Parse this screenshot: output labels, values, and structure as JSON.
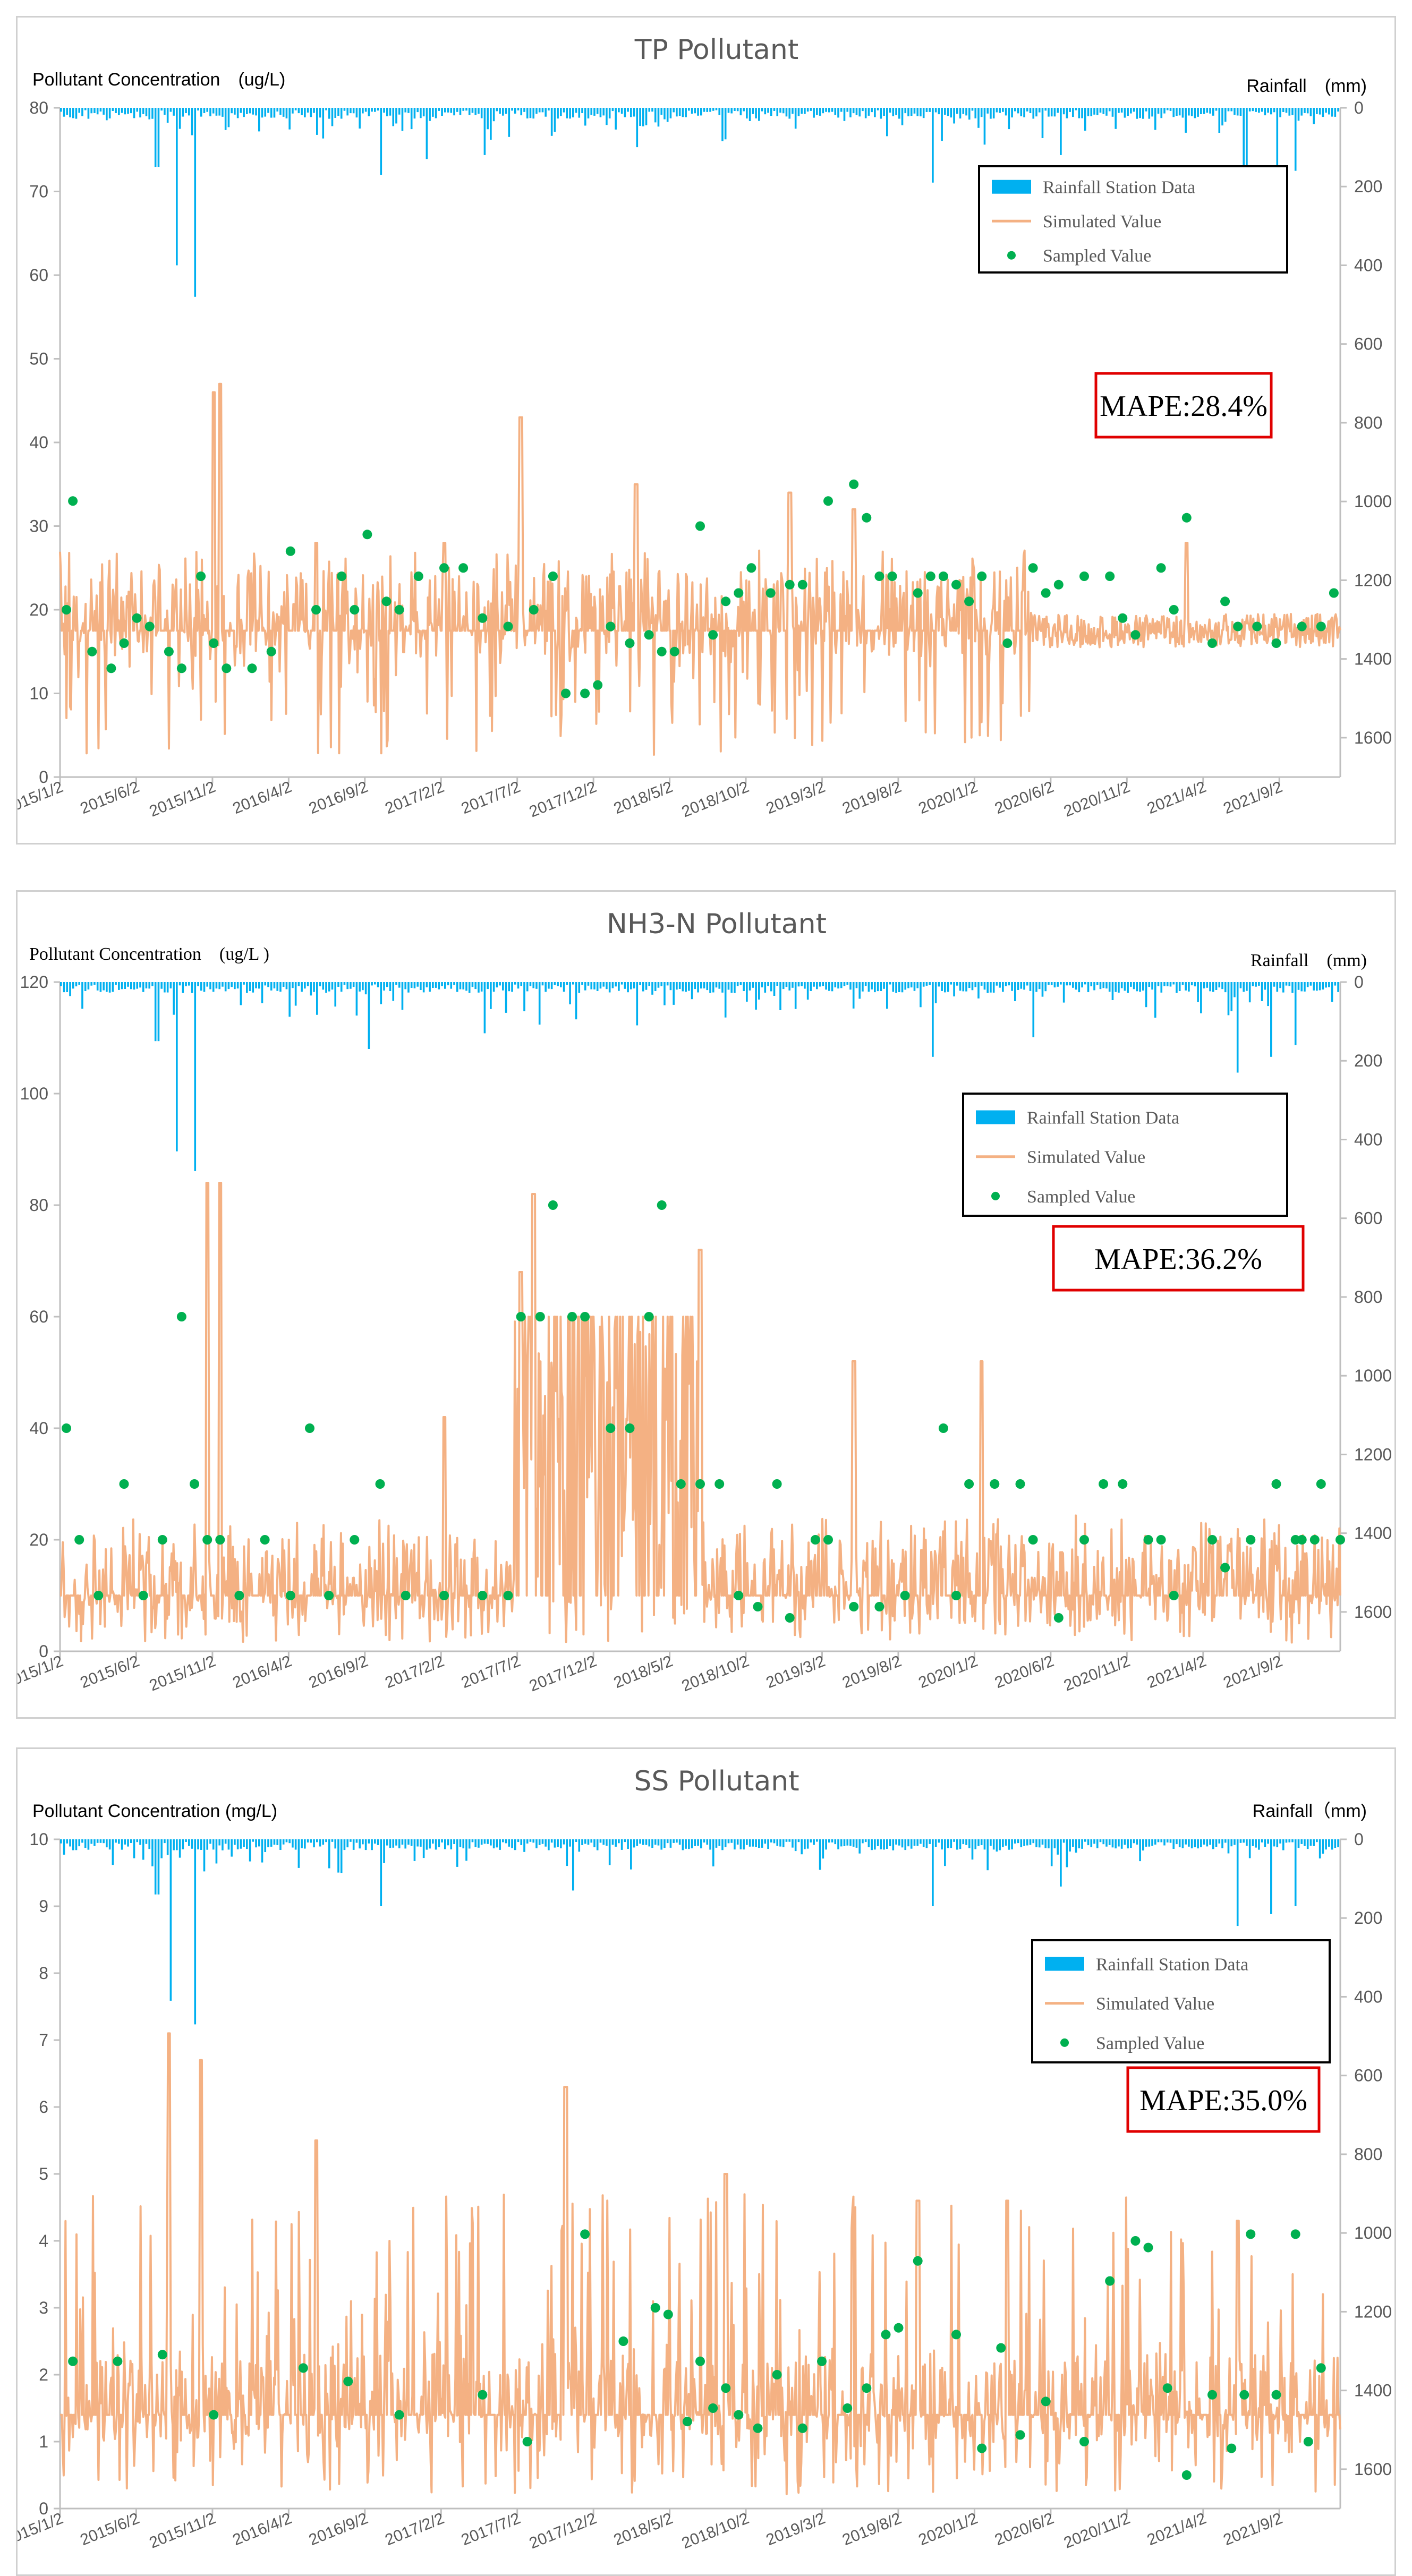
{
  "chart_data": [
    {
      "type": "line",
      "title": "TP Pollutant",
      "ylabel": "Pollutant Concentration　(ug/L)",
      "y2label": "Rainfall　(mm)",
      "ylim": [
        0,
        80
      ],
      "yticks": [
        0,
        10,
        20,
        30,
        40,
        50,
        60,
        70,
        80
      ],
      "y2lim": [
        0,
        1700
      ],
      "y2reversed": true,
      "y2ticks": [
        0,
        200,
        400,
        600,
        800,
        1000,
        1200,
        1400,
        1600
      ],
      "xticks": [
        "2015/1/2",
        "2015/6/2",
        "2015/11/2",
        "2016/4/2",
        "2016/9/2",
        "2017/2/2",
        "2017/7/2",
        "2017/12/2",
        "2018/5/2",
        "2018/10/2",
        "2019/3/2",
        "2019/8/2",
        "2020/1/2",
        "2020/6/2",
        "2020/11/2",
        "2021/4/2",
        "2021/9/2"
      ],
      "legend": [
        "Rainfall Station Data",
        "Simulated Value",
        "Sampled Value"
      ],
      "legend_position": "right",
      "annotation": "MAPE:28.4%",
      "base": 17.5,
      "peaks": [
        [
          0.12,
          46
        ],
        [
          0.125,
          47
        ],
        [
          0.36,
          43
        ],
        [
          0.45,
          35
        ],
        [
          0.57,
          34
        ],
        [
          0.62,
          32
        ],
        [
          0.88,
          28
        ],
        [
          0.2,
          28
        ],
        [
          0.3,
          28
        ]
      ],
      "rain_spikes": [
        [
          0.09,
          400
        ],
        [
          0.105,
          480
        ],
        [
          0.075,
          150
        ],
        [
          0.25,
          170
        ],
        [
          0.285,
          130
        ],
        [
          0.33,
          120
        ],
        [
          0.45,
          100
        ],
        [
          0.52,
          80
        ],
        [
          0.68,
          190
        ],
        [
          0.78,
          120
        ],
        [
          0.925,
          220
        ],
        [
          0.95,
          190
        ],
        [
          0.965,
          160
        ]
      ],
      "series": [
        {
          "name": "Sampled Value",
          "x": [
            0.005,
            0.01,
            0.025,
            0.04,
            0.05,
            0.06,
            0.07,
            0.085,
            0.095,
            0.11,
            0.12,
            0.13,
            0.15,
            0.165,
            0.18,
            0.2,
            0.22,
            0.23,
            0.24,
            0.255,
            0.265,
            0.28,
            0.3,
            0.315,
            0.33,
            0.35,
            0.37,
            0.385,
            0.395,
            0.41,
            0.42,
            0.43,
            0.445,
            0.46,
            0.47,
            0.48,
            0.5,
            0.51,
            0.52,
            0.53,
            0.54,
            0.555,
            0.57,
            0.58,
            0.6,
            0.62,
            0.63,
            0.64,
            0.65,
            0.67,
            0.68,
            0.69,
            0.7,
            0.71,
            0.72,
            0.74,
            0.76,
            0.77,
            0.78,
            0.8,
            0.82,
            0.83,
            0.84,
            0.86,
            0.87,
            0.88,
            0.9,
            0.91,
            0.92,
            0.935,
            0.95,
            0.97,
            0.985,
            0.995
          ],
          "y": [
            20,
            33,
            15,
            13,
            16,
            19,
            18,
            15,
            13,
            24,
            16,
            13,
            13,
            15,
            27,
            20,
            24,
            20,
            29,
            21,
            20,
            24,
            25,
            25,
            19,
            18,
            20,
            24,
            10,
            10,
            11,
            18,
            16,
            17,
            15,
            15,
            30,
            17,
            21,
            22,
            25,
            22,
            23,
            23,
            33,
            35,
            31,
            24,
            24,
            22,
            24,
            24,
            23,
            21,
            24,
            16,
            25,
            22,
            23,
            24,
            24,
            19,
            17,
            25,
            20,
            31,
            16,
            21,
            18,
            18,
            16,
            18,
            18,
            22
          ]
        }
      ]
    },
    {
      "type": "line",
      "title": "NH3-N Pollutant",
      "ylabel": "Pollutant Concentration　(ug/L )",
      "y2label": "Rainfall　(mm)",
      "ylim": [
        0,
        120
      ],
      "yticks": [
        0,
        20,
        40,
        60,
        80,
        100,
        120
      ],
      "y2lim": [
        0,
        1700
      ],
      "y2reversed": true,
      "y2ticks": [
        0,
        200,
        400,
        600,
        800,
        1000,
        1200,
        1400,
        1600
      ],
      "xticks": [
        "2015/1/2",
        "2015/6/2",
        "2015/11/2",
        "2016/4/2",
        "2016/9/2",
        "2017/2/2",
        "2017/7/2",
        "2017/12/2",
        "2018/5/2",
        "2018/10/2",
        "2019/3/2",
        "2019/8/2",
        "2020/1/2",
        "2020/6/2",
        "2020/11/2",
        "2021/4/2",
        "2021/9/2"
      ],
      "legend": [
        "Rainfall Station Data",
        "Simulated Value",
        "Sampled Value"
      ],
      "legend_position": "right",
      "annotation": "MAPE:36.2%",
      "base": 10,
      "peaks": [
        [
          0.115,
          84
        ],
        [
          0.125,
          84
        ],
        [
          0.3,
          42
        ],
        [
          0.36,
          68
        ],
        [
          0.37,
          82
        ],
        [
          0.5,
          72
        ],
        [
          0.62,
          52
        ],
        [
          0.72,
          52
        ]
      ],
      "rain_spikes": [
        [
          0.09,
          430
        ],
        [
          0.105,
          480
        ],
        [
          0.075,
          150
        ],
        [
          0.24,
          170
        ],
        [
          0.33,
          130
        ],
        [
          0.45,
          110
        ],
        [
          0.52,
          90
        ],
        [
          0.68,
          190
        ],
        [
          0.76,
          140
        ],
        [
          0.92,
          230
        ],
        [
          0.945,
          190
        ],
        [
          0.965,
          160
        ]
      ],
      "series": [
        {
          "name": "Sampled Value",
          "x": [
            0.005,
            0.015,
            0.03,
            0.05,
            0.065,
            0.08,
            0.095,
            0.105,
            0.115,
            0.125,
            0.14,
            0.16,
            0.18,
            0.195,
            0.21,
            0.23,
            0.25,
            0.27,
            0.3,
            0.33,
            0.35,
            0.36,
            0.375,
            0.385,
            0.4,
            0.41,
            0.43,
            0.445,
            0.46,
            0.47,
            0.485,
            0.5,
            0.515,
            0.53,
            0.545,
            0.56,
            0.57,
            0.59,
            0.6,
            0.62,
            0.64,
            0.66,
            0.69,
            0.7,
            0.71,
            0.73,
            0.75,
            0.76,
            0.78,
            0.8,
            0.815,
            0.83,
            0.85,
            0.86,
            0.87,
            0.9,
            0.91,
            0.93,
            0.95,
            0.965,
            0.97,
            0.98,
            0.985,
            1.0
          ],
          "y": [
            40,
            20,
            10,
            30,
            10,
            20,
            60,
            30,
            20,
            20,
            10,
            20,
            10,
            40,
            10,
            20,
            30,
            10,
            10,
            10,
            10,
            60,
            60,
            80,
            60,
            60,
            40,
            40,
            60,
            80,
            30,
            30,
            30,
            10,
            8,
            30,
            6,
            20,
            20,
            8,
            8,
            10,
            40,
            10,
            30,
            30,
            30,
            20,
            6,
            20,
            30,
            30,
            20,
            20,
            10,
            20,
            15,
            20,
            30,
            20,
            20,
            20,
            30,
            20
          ]
        }
      ]
    },
    {
      "type": "line",
      "title": "SS Pollutant",
      "ylabel": "Pollutant Concentration (mg/L)",
      "y2label": "Rainfall（mm)",
      "ylim": [
        0,
        10
      ],
      "yticks": [
        0,
        1,
        2,
        3,
        4,
        5,
        6,
        7,
        8,
        9,
        10
      ],
      "y2lim": [
        0,
        1700
      ],
      "y2reversed": true,
      "y2ticks": [
        0,
        200,
        400,
        600,
        800,
        1000,
        1200,
        1400,
        1600
      ],
      "xticks": [
        "2015/1/2",
        "2015/6/2",
        "2015/11/2",
        "2016/4/2",
        "2016/9/2",
        "2017/2/2",
        "2017/7/2",
        "2017/12/2",
        "2018/5/2",
        "2018/10/2",
        "2019/3/2",
        "2019/8/2",
        "2020/1/2",
        "2020/6/2",
        "2020/11/2",
        "2021/4/2",
        "2021/9/2"
      ],
      "legend": [
        "Rainfall Station Data",
        "Simulated Value",
        "Sampled Value"
      ],
      "legend_position": "right",
      "annotation": "MAPE:35.0%",
      "base": 1.4,
      "peaks": [
        [
          0.085,
          7.1
        ],
        [
          0.11,
          6.7
        ],
        [
          0.2,
          5.5
        ],
        [
          0.395,
          6.3
        ],
        [
          0.52,
          5.0
        ],
        [
          0.67,
          4.6
        ],
        [
          0.74,
          4.6
        ],
        [
          0.92,
          4.3
        ]
      ],
      "rain_spikes": [
        [
          0.085,
          410
        ],
        [
          0.105,
          470
        ],
        [
          0.075,
          140
        ],
        [
          0.25,
          170
        ],
        [
          0.4,
          130
        ],
        [
          0.68,
          170
        ],
        [
          0.78,
          120
        ],
        [
          0.92,
          220
        ],
        [
          0.945,
          190
        ],
        [
          0.965,
          170
        ]
      ],
      "series": [
        {
          "name": "Sampled Value",
          "x": [
            0.01,
            0.045,
            0.08,
            0.12,
            0.19,
            0.225,
            0.265,
            0.33,
            0.365,
            0.41,
            0.44,
            0.465,
            0.475,
            0.49,
            0.5,
            0.51,
            0.52,
            0.53,
            0.545,
            0.56,
            0.58,
            0.595,
            0.615,
            0.63,
            0.645,
            0.655,
            0.67,
            0.7,
            0.72,
            0.735,
            0.75,
            0.77,
            0.8,
            0.82,
            0.84,
            0.85,
            0.865,
            0.88,
            0.9,
            0.915,
            0.925,
            0.93,
            0.95,
            0.965,
            0.975,
            0.985
          ],
          "y": [
            2.2,
            2.2,
            2.3,
            1.4,
            2.1,
            1.9,
            1.4,
            1.7,
            1.0,
            4.1,
            2.5,
            3.0,
            2.9,
            1.3,
            2.2,
            1.5,
            1.8,
            1.4,
            1.2,
            2.0,
            1.2,
            2.2,
            1.5,
            1.8,
            2.6,
            2.7,
            3.7,
            2.6,
            0.9,
            2.4,
            1.1,
            1.6,
            1.0,
            3.4,
            4.0,
            3.9,
            1.8,
            0.5,
            1.7,
            0.9,
            1.7,
            4.1,
            1.7,
            4.1,
            1.0,
            2.1
          ]
        }
      ]
    }
  ],
  "style": {
    "rain_color": "#00b0f0",
    "sim_color": "#f4b183",
    "sample_color": "#00b050",
    "mape_border": "#e00000",
    "axis_color": "#bfbfbf"
  }
}
